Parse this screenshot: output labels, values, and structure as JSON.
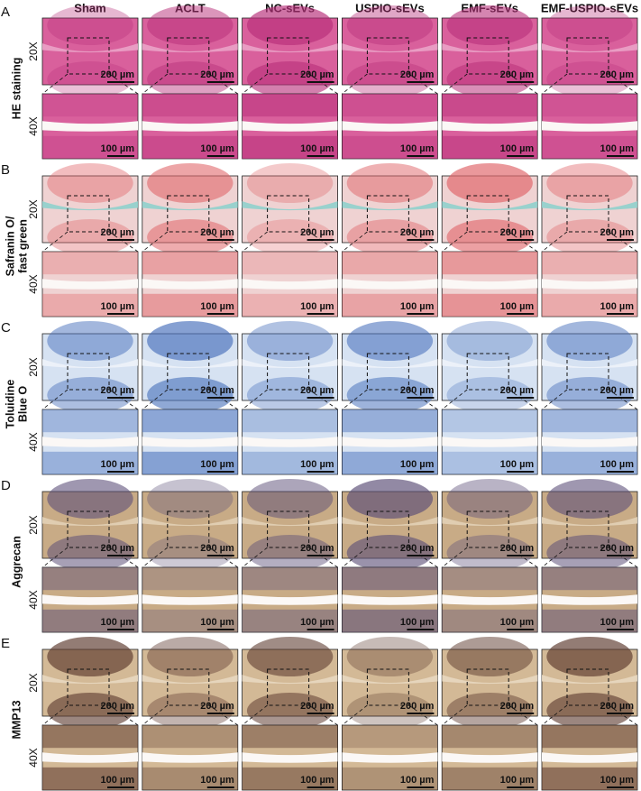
{
  "columns": [
    "Sham",
    "ACLT",
    "NC-sEVs",
    "USPIO-sEVs",
    "EMF-sEVs",
    "EMF-USPIO-sEVs"
  ],
  "panels": [
    {
      "letter": "A",
      "label": [
        "HE staining"
      ],
      "rows": [
        {
          "magnification": "20X",
          "scale_bar": "200 µm"
        },
        {
          "magnification": "40X",
          "scale_bar": "100 µm"
        }
      ]
    },
    {
      "letter": "B",
      "label": [
        "Safranin O/",
        "fast green"
      ],
      "rows": [
        {
          "magnification": "20X",
          "scale_bar": "200 µm"
        },
        {
          "magnification": "40X",
          "scale_bar": "100 µm"
        }
      ]
    },
    {
      "letter": "C",
      "label": [
        "Toluidine",
        "Blue O"
      ],
      "rows": [
        {
          "magnification": "20X",
          "scale_bar": "200 µm"
        },
        {
          "magnification": "40X",
          "scale_bar": "100 µm"
        }
      ]
    },
    {
      "letter": "D",
      "label": [
        "Aggrecan"
      ],
      "rows": [
        {
          "magnification": "20X",
          "scale_bar": "200 µm"
        },
        {
          "magnification": "40X",
          "scale_bar": "100 µm"
        }
      ]
    },
    {
      "letter": "E",
      "label": [
        "MMP13"
      ],
      "rows": [
        {
          "magnification": "20X",
          "scale_bar": "200 µm"
        },
        {
          "magnification": "40X",
          "scale_bar": "100 µm"
        }
      ]
    }
  ]
}
